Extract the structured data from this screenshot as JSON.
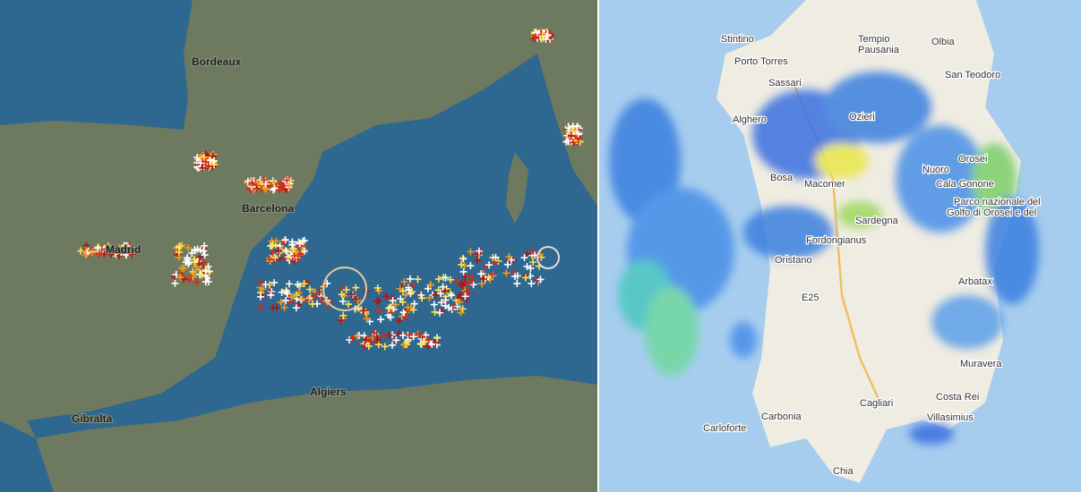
{
  "lightning_map": {
    "labels": [
      "Bordeaux",
      "Barcelona",
      "Madrid",
      "Gibralta",
      "Algiers"
    ]
  },
  "radar_map": {
    "labels": [
      "Stintino",
      "Porto Torres",
      "Tempio",
      "Pausania",
      "Olbia",
      "San Teodoro",
      "Sassari",
      "Alghero",
      "Ozieri",
      "Orosei",
      "Nuoro",
      "Bosa",
      "Macomer",
      "Cala Gonone",
      "Parco nazionale del",
      "Golfo di Orosei e del",
      "Sardegna",
      "Fordongianus",
      "Oristano",
      "Arbatax",
      "E25",
      "Muravera",
      "Cagliari",
      "Carbonia",
      "Carloforte",
      "Costa Rei",
      "Villasimius",
      "Chia"
    ]
  }
}
